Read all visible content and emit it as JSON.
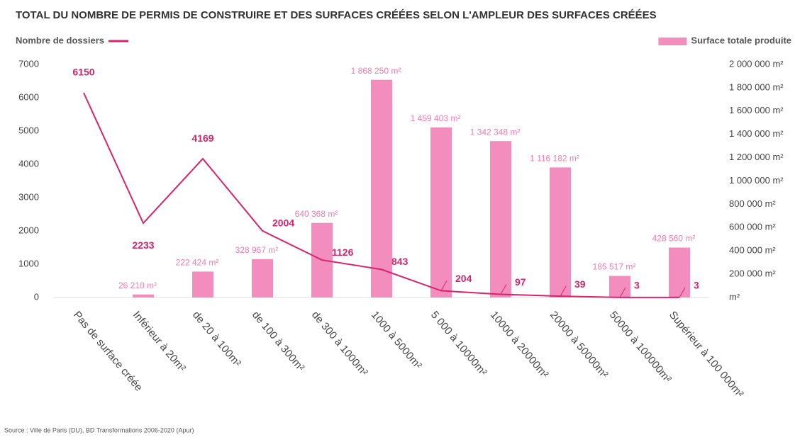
{
  "chart_data": {
    "type": "bar",
    "title": "TOTAL DU NOMBRE DE PERMIS DE CONSTRUIRE ET DES SURFACES CRÉÉES SELON L'AMPLEUR DES SURFACES CRÉÉES",
    "source": "Source : Ville de Paris (DU), BD Transformations 2006-2020 (Apur)",
    "categories": [
      "Pas de surface créée",
      "Inférieur à 20m²",
      "de 20 à 100m²",
      "de 100 à 300m²",
      "de 300 à 1000m²",
      "1000 à 5000m²",
      "5 000 à 10000m²",
      "10000 à 20000m²",
      "20000 à 50000m²",
      "50000 à 100000m²",
      "Supérieur à 100 000m²"
    ],
    "series": [
      {
        "name": "Nombre de dossiers",
        "type": "line",
        "axis": "y",
        "color": "#d6246e",
        "values": [
          6150,
          2233,
          4169,
          2004,
          1126,
          843,
          204,
          97,
          39,
          3,
          3
        ]
      },
      {
        "name": "Surface totale produite",
        "type": "bar",
        "axis": "y2",
        "color": "#f38dbd",
        "values": [
          null,
          26210,
          222424,
          328967,
          640368,
          1868250,
          1459403,
          1342348,
          1116182,
          185517,
          428560
        ],
        "value_labels": [
          null,
          "26 210 m²",
          "222 424 m²",
          "328 967 m²",
          "640 368 m²",
          "1 868 250 m²",
          "1 459 403 m²",
          "1 342 348 m²",
          "1 116 182 m²",
          "185 517 m²",
          "428 560 m²"
        ]
      }
    ],
    "ylim": [
      0,
      7000
    ],
    "yticks": [
      0,
      1000,
      2000,
      3000,
      4000,
      5000,
      6000,
      7000
    ],
    "y2lim": [
      0,
      2000000
    ],
    "y2ticks": [
      {
        "value": 0,
        "label": "m²"
      },
      {
        "value": 200000,
        "label": "200 000 m²"
      },
      {
        "value": 400000,
        "label": "400 000 m²"
      },
      {
        "value": 600000,
        "label": "600 000 m²"
      },
      {
        "value": 800000,
        "label": "800 000 m²"
      },
      {
        "value": 1000000,
        "label": "1 000 000 m²"
      },
      {
        "value": 1200000,
        "label": "1 200 000 m²"
      },
      {
        "value": 1400000,
        "label": "1 400 000 m²"
      },
      {
        "value": 1600000,
        "label": "1 600 000 m²"
      },
      {
        "value": 1800000,
        "label": "1 800 000 m²"
      },
      {
        "value": 2000000,
        "label": "2 000 000 m²"
      }
    ],
    "grid": false
  }
}
